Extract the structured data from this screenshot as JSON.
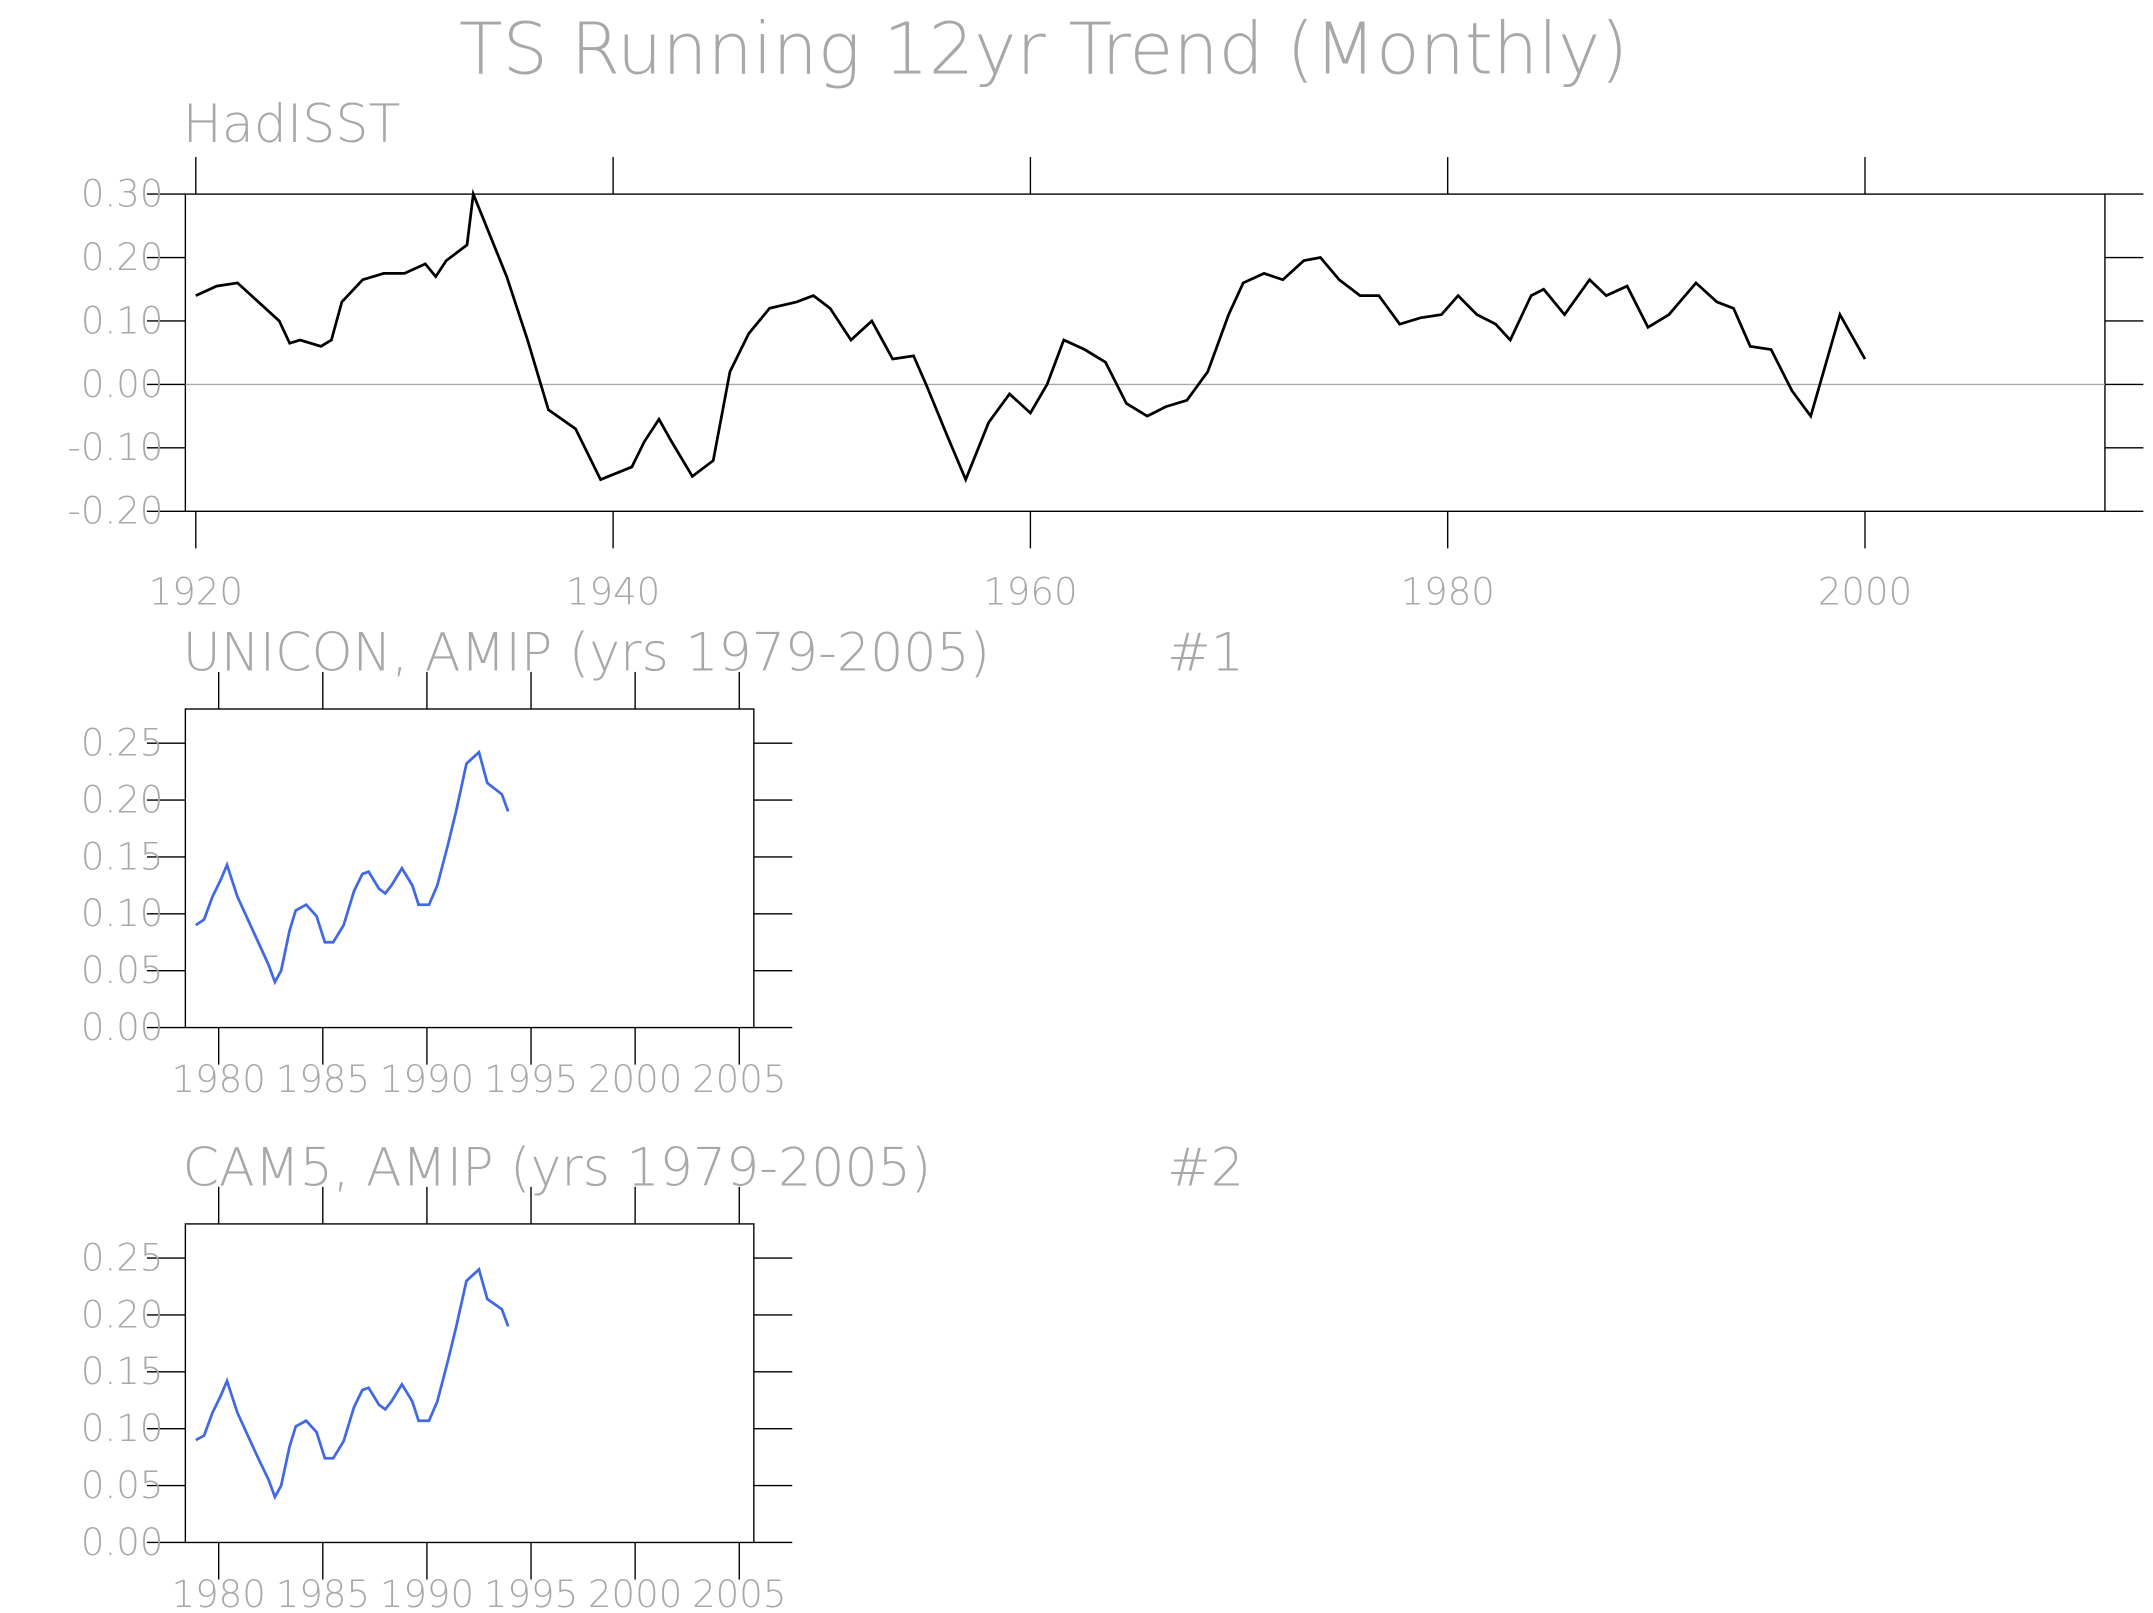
{
  "title": "TS Running 12yr Trend (Monthly)",
  "chart_data": [
    {
      "type": "line",
      "title": "HadISST",
      "color": "#000000",
      "x": [
        1920,
        1921,
        1922,
        1923,
        1924,
        1924.5,
        1925,
        1926,
        1926.5,
        1927,
        1928,
        1929,
        1930,
        1931,
        1931.5,
        1932,
        1933,
        1933.3,
        1934.9,
        1935.9,
        1936.9,
        1938.2,
        1939.4,
        1940.9,
        1941.5,
        1942.2,
        1942.8,
        1943.8,
        1944.8,
        1945.6,
        1946.5,
        1947.5,
        1948.8,
        1949.6,
        1950.4,
        1951.4,
        1952.4,
        1953.4,
        1954.4,
        1955.0,
        1956.0,
        1956.9,
        1958.0,
        1959.0,
        1960.0,
        1960.8,
        1961.6,
        1962.6,
        1963.6,
        1964.6,
        1965.6,
        1966.5,
        1967.5,
        1968.5,
        1969.5,
        1970.2,
        1971.2,
        1972.1,
        1973.1,
        1973.9,
        1974.8,
        1975.8,
        1976.7,
        1977.7,
        1978.7,
        1979.7,
        1980.5,
        1981.4,
        1982.3,
        1983.0,
        1984.0,
        1984.6,
        1985.6,
        1986.8,
        1987.6,
        1988.6,
        1989.6,
        1990.6,
        1991.9,
        1992.9,
        1993.7,
        1994.5,
        1995.5,
        1996.5,
        1997.4,
        1998.8,
        2000
      ],
      "values": [
        0.14,
        0.155,
        0.16,
        0.13,
        0.1,
        0.065,
        0.07,
        0.06,
        0.07,
        0.13,
        0.165,
        0.175,
        0.175,
        0.19,
        0.17,
        0.195,
        0.22,
        0.3,
        0.17,
        0.07,
        -0.04,
        -0.07,
        -0.15,
        -0.13,
        -0.09,
        -0.055,
        -0.09,
        -0.145,
        -0.12,
        0.02,
        0.08,
        0.12,
        0.13,
        0.14,
        0.12,
        0.07,
        0.1,
        0.04,
        0.045,
        0.0,
        -0.08,
        -0.15,
        -0.06,
        -0.015,
        -0.045,
        0.0,
        0.07,
        0.055,
        0.035,
        -0.03,
        -0.05,
        -0.035,
        -0.025,
        0.02,
        0.11,
        0.16,
        0.175,
        0.165,
        0.195,
        0.2,
        0.165,
        0.14,
        0.14,
        0.095,
        0.105,
        0.11,
        0.14,
        0.11,
        0.095,
        0.07,
        0.14,
        0.15,
        0.11,
        0.165,
        0.14,
        0.155,
        0.09,
        0.11,
        0.16,
        0.13,
        0.12,
        0.06,
        0.055,
        -0.01,
        -0.05,
        0.11,
        0.04
      ],
      "xlim": [
        1919.5,
        2011.5
      ],
      "xticks": [
        1920,
        1940,
        1960,
        1980,
        2000
      ],
      "ylim": [
        -0.2,
        0.3
      ],
      "yticks": [
        {
          "value": -0.2,
          "label": "-0.20"
        },
        {
          "value": -0.1,
          "label": "-0.10"
        },
        {
          "value": 0,
          "label": "0.00"
        },
        {
          "value": 0.1,
          "label": "0.10"
        },
        {
          "value": 0.2,
          "label": "0.20"
        },
        {
          "value": 0.3,
          "label": "0.30"
        }
      ],
      "reference_line": 0
    },
    {
      "type": "line",
      "title": "UNICON, AMIP (yrs 1979-2005)",
      "annotation": "#1",
      "color": "#4169e1",
      "x": [
        1978.9,
        1979.3,
        1979.7,
        1980.1,
        1980.4,
        1980.9,
        1981.4,
        1981.9,
        1982.4,
        1982.7,
        1983.0,
        1983.4,
        1983.7,
        1984.2,
        1984.7,
        1985.1,
        1985.5,
        1986.0,
        1986.5,
        1986.9,
        1987.2,
        1987.7,
        1988.0,
        1988.3,
        1988.8,
        1989.3,
        1989.6,
        1990.1,
        1990.5,
        1991.0,
        1991.4,
        1991.9,
        1992.5,
        1992.9,
        1993.6,
        1993.9
      ],
      "values": [
        0.09,
        0.095,
        0.115,
        0.13,
        0.143,
        0.115,
        0.095,
        0.075,
        0.055,
        0.04,
        0.05,
        0.085,
        0.103,
        0.108,
        0.098,
        0.075,
        0.075,
        0.09,
        0.12,
        0.135,
        0.137,
        0.122,
        0.118,
        0.125,
        0.14,
        0.125,
        0.108,
        0.108,
        0.125,
        0.16,
        0.19,
        0.232,
        0.242,
        0.215,
        0.205,
        0.19
      ],
      "xlim": [
        1978.4,
        2005.7
      ],
      "xticks": [
        1980,
        1985,
        1990,
        1995,
        2000,
        2005
      ],
      "ylim": [
        0,
        0.28
      ],
      "yticks": [
        {
          "value": 0,
          "label": "0.00"
        },
        {
          "value": 0.05,
          "label": "0.05"
        },
        {
          "value": 0.1,
          "label": "0.10"
        },
        {
          "value": 0.15,
          "label": "0.15"
        },
        {
          "value": 0.2,
          "label": "0.20"
        },
        {
          "value": 0.25,
          "label": "0.25"
        }
      ]
    },
    {
      "type": "line",
      "title": "CAM5, AMIP (yrs 1979-2005)",
      "annotation": "#2",
      "color": "#4169e1",
      "x": [
        1978.9,
        1979.3,
        1979.7,
        1980.1,
        1980.4,
        1980.9,
        1981.4,
        1981.9,
        1982.4,
        1982.7,
        1983.0,
        1983.4,
        1983.7,
        1984.2,
        1984.7,
        1985.1,
        1985.5,
        1986.0,
        1986.5,
        1986.9,
        1987.2,
        1987.7,
        1988.0,
        1988.3,
        1988.8,
        1989.3,
        1989.6,
        1990.1,
        1990.5,
        1991.0,
        1991.4,
        1991.9,
        1992.5,
        1992.9,
        1993.6,
        1993.9
      ],
      "values": [
        0.09,
        0.094,
        0.114,
        0.129,
        0.142,
        0.114,
        0.094,
        0.074,
        0.055,
        0.04,
        0.05,
        0.084,
        0.102,
        0.107,
        0.097,
        0.074,
        0.074,
        0.089,
        0.119,
        0.134,
        0.136,
        0.121,
        0.117,
        0.124,
        0.139,
        0.124,
        0.107,
        0.107,
        0.124,
        0.159,
        0.189,
        0.23,
        0.24,
        0.214,
        0.205,
        0.19
      ],
      "xlim": [
        1978.4,
        2005.7
      ],
      "xticks": [
        1980,
        1985,
        1990,
        1995,
        2000,
        2005
      ],
      "ylim": [
        0,
        0.28
      ],
      "yticks": [
        {
          "value": 0,
          "label": "0.00"
        },
        {
          "value": 0.05,
          "label": "0.05"
        },
        {
          "value": 0.1,
          "label": "0.10"
        },
        {
          "value": 0.15,
          "label": "0.15"
        },
        {
          "value": 0.2,
          "label": "0.20"
        },
        {
          "value": 0.25,
          "label": "0.25"
        }
      ]
    }
  ]
}
